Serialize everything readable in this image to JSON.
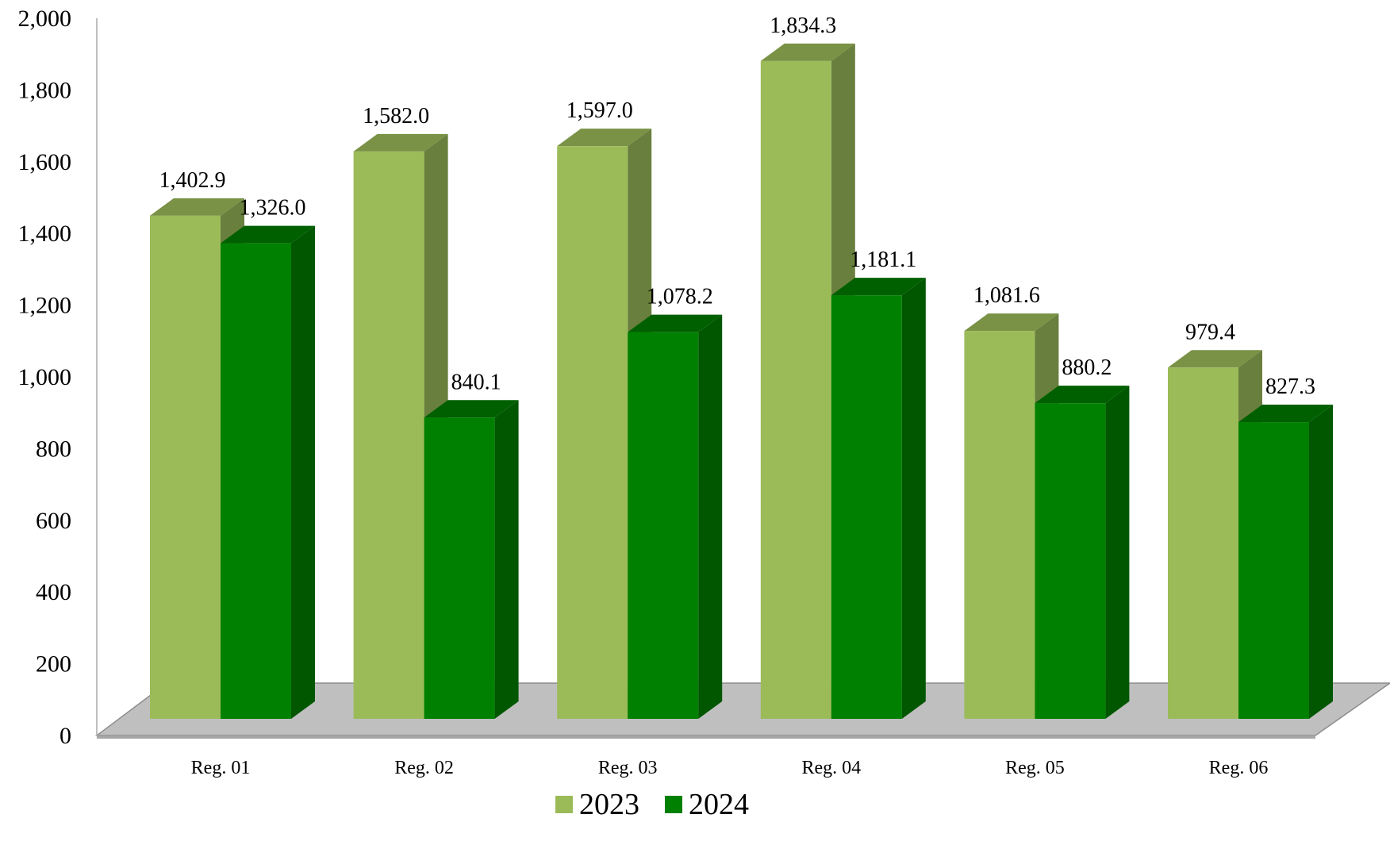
{
  "chart_data": {
    "type": "bar",
    "categories": [
      "Reg. 01",
      "Reg. 02",
      "Reg. 03",
      "Reg. 04",
      "Reg. 05",
      "Reg. 06"
    ],
    "series": [
      {
        "name": "2023",
        "values": [
          1402.9,
          1582.0,
          1597.0,
          1834.3,
          1081.6,
          979.4
        ],
        "color": "#9bbb59"
      },
      {
        "name": "2024",
        "values": [
          1326.0,
          840.1,
          1078.2,
          1181.1,
          880.2,
          827.3
        ],
        "color": "#008000"
      }
    ],
    "data_labels": [
      [
        "1,402.9",
        "1,582.0",
        "1,597.0",
        "1,834.3",
        "1,081.6",
        "979.4"
      ],
      [
        "1,326.0",
        "840.1",
        "1,078.2",
        "1,181.1",
        "880.2",
        "827.3"
      ]
    ],
    "y_ticks": [
      "0",
      "200",
      "400",
      "600",
      "800",
      "1,000",
      "1,200",
      "1,400",
      "1,600",
      "1,800",
      "2,000"
    ],
    "ylim": [
      0,
      2000
    ],
    "title": "",
    "xlabel": "",
    "ylabel": "",
    "grid": false,
    "legend_position": "bottom-center",
    "style": "3d-clustered-column",
    "floor_color": "#bfbfbf"
  }
}
